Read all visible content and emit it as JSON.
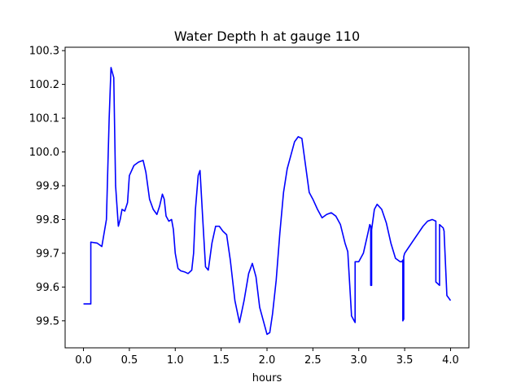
{
  "chart_data": {
    "type": "line",
    "title": "Water Depth h at gauge 110",
    "xlabel": "hours",
    "ylabel": "",
    "xlim": [
      -0.2,
      4.2
    ],
    "ylim": [
      99.42,
      100.31
    ],
    "xticks": [
      0.0,
      0.5,
      1.0,
      1.5,
      2.0,
      2.5,
      3.0,
      3.5,
      4.0
    ],
    "xtick_labels": [
      "0.0",
      "0.5",
      "1.0",
      "1.5",
      "2.0",
      "2.5",
      "3.0",
      "3.5",
      "4.0"
    ],
    "yticks": [
      99.5,
      99.6,
      99.7,
      99.8,
      99.9,
      100.0,
      100.1,
      100.2,
      100.3
    ],
    "ytick_labels": [
      "99.5",
      "99.6",
      "99.7",
      "99.8",
      "99.9",
      "100.0",
      "100.1",
      "100.2",
      "100.3"
    ],
    "grid": false,
    "series": [
      {
        "color": "#0000ff",
        "x": [
          0.0,
          0.08,
          0.08,
          0.15,
          0.2,
          0.25,
          0.28,
          0.3,
          0.33,
          0.35,
          0.38,
          0.4,
          0.42,
          0.45,
          0.48,
          0.5,
          0.55,
          0.6,
          0.65,
          0.68,
          0.72,
          0.76,
          0.8,
          0.83,
          0.86,
          0.88,
          0.9,
          0.93,
          0.96,
          0.98,
          1.0,
          1.03,
          1.06,
          1.1,
          1.14,
          1.18,
          1.2,
          1.22,
          1.25,
          1.27,
          1.3,
          1.33,
          1.36,
          1.4,
          1.44,
          1.48,
          1.52,
          1.56,
          1.6,
          1.65,
          1.7,
          1.75,
          1.8,
          1.84,
          1.88,
          1.92,
          1.96,
          2.0,
          2.03,
          2.06,
          2.1,
          2.14,
          2.18,
          2.22,
          2.26,
          2.3,
          2.34,
          2.38,
          2.42,
          2.46,
          2.5,
          2.55,
          2.6,
          2.65,
          2.7,
          2.75,
          2.8,
          2.85,
          2.88,
          2.92,
          2.92,
          2.95,
          2.96,
          2.96,
          3.0,
          3.05,
          3.1,
          3.12,
          3.13,
          3.13,
          3.14,
          3.14,
          3.17,
          3.2,
          3.25,
          3.3,
          3.35,
          3.4,
          3.45,
          3.47,
          3.48,
          3.48,
          3.49,
          3.49,
          3.5,
          3.55,
          3.6,
          3.65,
          3.7,
          3.75,
          3.8,
          3.84,
          3.84,
          3.88,
          3.88,
          3.92,
          3.93,
          3.93,
          3.96,
          4.0
        ],
        "y": [
          99.55,
          99.55,
          99.733,
          99.73,
          99.72,
          99.8,
          100.1,
          100.25,
          100.22,
          99.9,
          99.78,
          99.8,
          99.83,
          99.825,
          99.85,
          99.93,
          99.96,
          99.97,
          99.975,
          99.94,
          99.86,
          99.83,
          99.815,
          99.84,
          99.875,
          99.86,
          99.81,
          99.795,
          99.8,
          99.77,
          99.7,
          99.655,
          99.648,
          99.645,
          99.64,
          99.65,
          99.7,
          99.83,
          99.93,
          99.945,
          99.8,
          99.66,
          99.65,
          99.73,
          99.78,
          99.78,
          99.765,
          99.755,
          99.68,
          99.56,
          99.495,
          99.56,
          99.64,
          99.67,
          99.63,
          99.54,
          99.5,
          99.46,
          99.465,
          99.52,
          99.62,
          99.76,
          99.88,
          99.95,
          99.99,
          100.03,
          100.045,
          100.04,
          99.96,
          99.88,
          99.86,
          99.83,
          99.805,
          99.815,
          99.82,
          99.81,
          99.785,
          99.73,
          99.705,
          99.52,
          99.515,
          99.5,
          99.495,
          99.675,
          99.675,
          99.7,
          99.76,
          99.785,
          99.78,
          99.605,
          99.605,
          99.77,
          99.83,
          99.845,
          99.83,
          99.79,
          99.73,
          99.685,
          99.675,
          99.675,
          99.68,
          99.5,
          99.505,
          99.69,
          99.7,
          99.72,
          99.74,
          99.76,
          99.78,
          99.795,
          99.8,
          99.795,
          99.615,
          99.605,
          99.785,
          99.775,
          99.765,
          99.76,
          99.575,
          99.56
        ]
      }
    ]
  }
}
